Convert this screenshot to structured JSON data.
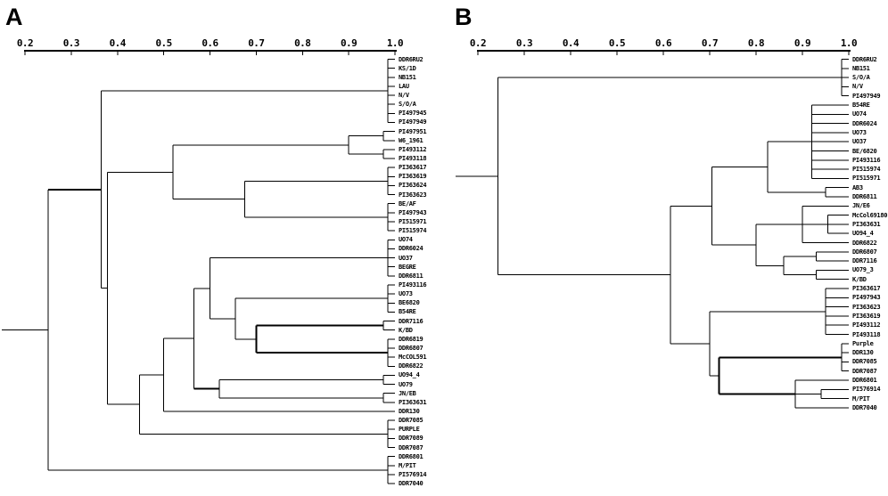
{
  "figure": {
    "background": "#ffffff",
    "line_color": "#000000"
  },
  "chart_data": [
    {
      "type": "dendrogram",
      "panel": "A",
      "axis": {
        "min": 0.2,
        "max": 1.0,
        "position": "top",
        "label_values": [
          "0.2",
          "0.3",
          "0.4",
          "0.5",
          "0.6",
          "0.7",
          "0.8",
          "0.9",
          "1.0"
        ]
      },
      "leaves": [
        "DDR6RU2",
        "KS/1D",
        "NB151",
        "LAU",
        "N/V",
        "S/O/A",
        "PI497945",
        "PI497949",
        "PI497951",
        "W6_1961",
        "PI493112",
        "PI493118",
        "PI363617",
        "PI363619",
        "PI363624",
        "PI363623",
        "BE/AF",
        "PI497943",
        "PI515971",
        "PI515974",
        "UO74",
        "DDR6024",
        "UO37",
        "BEGRE",
        "DDR6811",
        "PI493116",
        "UO73",
        "BE6820",
        "B54RE",
        "DDR7116",
        "K/BD",
        "DDR6819",
        "DDR6807",
        "McCOL591",
        "DDR6822",
        "UO94_4",
        "UO79",
        "JN/EB",
        "PI363631",
        "DDR130",
        "DDR7085",
        "PURPLE",
        "DDR7089",
        "DDR7087",
        "DDR6801",
        "M/PIT",
        "PI576914",
        "DDR7040"
      ],
      "tree": {
        "h": 0.25,
        "children": [
          {
            "h": 0.365,
            "stem_bold": true,
            "children": [
              {
                "h": 0.985,
                "children": [
                  0,
                  1,
                  2,
                  3,
                  4,
                  5,
                  6,
                  7
                ]
              },
              {
                "h": 0.378,
                "children": [
                  {
                    "h": 0.52,
                    "children": [
                      {
                        "h": 0.9,
                        "children": [
                          {
                            "h": 0.975,
                            "children": [
                              8,
                              9
                            ]
                          },
                          {
                            "h": 0.975,
                            "children": [
                              10,
                              11
                            ]
                          }
                        ]
                      },
                      {
                        "h": 0.675,
                        "children": [
                          {
                            "h": 0.985,
                            "children": [
                              12,
                              13,
                              14,
                              15
                            ]
                          },
                          {
                            "h": 0.985,
                            "children": [
                              16,
                              17,
                              18,
                              19
                            ]
                          }
                        ]
                      }
                    ]
                  },
                  {
                    "h": 0.448,
                    "children": [
                      {
                        "h": 0.5,
                        "children": [
                          {
                            "h": 0.565,
                            "children": [
                              {
                                "h": 0.6,
                                "children": [
                                  {
                                    "h": 0.985,
                                    "children": [
                                      20,
                                      21,
                                      22,
                                      23,
                                      24
                                    ]
                                  },
                                  {
                                    "h": 0.655,
                                    "children": [
                                      {
                                        "h": 0.985,
                                        "children": [
                                          25,
                                          26,
                                          27,
                                          28
                                        ]
                                      },
                                      {
                                        "h": 0.7,
                                        "bold": true,
                                        "children": [
                                          {
                                            "h": 0.975,
                                            "children": [
                                              29,
                                              30
                                            ]
                                          },
                                          {
                                            "h": 0.985,
                                            "children": [
                                              31,
                                              32,
                                              33,
                                              34
                                            ]
                                          }
                                        ]
                                      }
                                    ]
                                  }
                                ]
                              },
                              {
                                "h": 0.62,
                                "stem_bold": true,
                                "children": [
                                  {
                                    "h": 0.975,
                                    "children": [
                                      35,
                                      36
                                    ]
                                  },
                                  {
                                    "h": 0.975,
                                    "children": [
                                      37,
                                      38
                                    ]
                                  }
                                ]
                              }
                            ]
                          },
                          39
                        ]
                      },
                      {
                        "h": 0.985,
                        "children": [
                          40,
                          41,
                          42,
                          43
                        ]
                      }
                    ]
                  }
                ]
              }
            ]
          },
          {
            "h": 0.985,
            "children": [
              44,
              45,
              46,
              47
            ]
          }
        ]
      }
    },
    {
      "type": "dendrogram",
      "panel": "B",
      "axis": {
        "min": 0.2,
        "max": 1.0,
        "position": "top",
        "label_values": [
          "0.2",
          "0.3",
          "0.4",
          "0.5",
          "0.6",
          "0.7",
          "0.8",
          "0.9",
          "1.0"
        ]
      },
      "leaves": [
        "DDR6RU2",
        "NB151",
        "S/O/A",
        "N/V",
        "PI497949",
        "B54RE",
        "UO74",
        "DDR6024",
        "UO73",
        "UO37",
        "BE/6820",
        "PI493116",
        "PI515974",
        "PI515971",
        "AB3",
        "DDR6811",
        "JN/E6",
        "McCol69180",
        "PI363631",
        "UO94_4",
        "DDR6822",
        "DDR6807",
        "DDR7116",
        "UO79_3",
        "K/BD",
        "PI363617",
        "PI497943",
        "PI363623",
        "PI363619",
        "PI493112",
        "PI493118",
        "Purple",
        "DDR130",
        "DDR7085",
        "DDR7087",
        "DDR6801",
        "PI576914",
        "M/PIT",
        "DDR7040"
      ],
      "tree": {
        "h": 0.243,
        "children": [
          {
            "h": 0.985,
            "children": [
              0,
              1,
              2,
              3,
              4
            ]
          },
          {
            "h": 0.615,
            "children": [
              {
                "h": 0.705,
                "children": [
                  {
                    "h": 0.825,
                    "children": [
                      {
                        "h": 0.92,
                        "children": [
                          5,
                          6,
                          7,
                          8,
                          9,
                          10,
                          11,
                          12,
                          13
                        ]
                      },
                      {
                        "h": 0.95,
                        "children": [
                          14,
                          15
                        ]
                      }
                    ]
                  },
                  {
                    "h": 0.8,
                    "children": [
                      {
                        "h": 0.9,
                        "children": [
                          16,
                          {
                            "h": 0.955,
                            "children": [
                              17,
                              18,
                              19
                            ]
                          },
                          20
                        ]
                      },
                      {
                        "h": 0.86,
                        "children": [
                          {
                            "h": 0.93,
                            "children": [
                              21,
                              22
                            ]
                          },
                          {
                            "h": 0.93,
                            "children": [
                              23,
                              24
                            ]
                          }
                        ]
                      }
                    ]
                  }
                ]
              },
              {
                "h": 0.7,
                "children": [
                  {
                    "h": 0.95,
                    "children": [
                      25,
                      26,
                      27,
                      28,
                      29,
                      30
                    ]
                  },
                  {
                    "h": 0.72,
                    "bold": true,
                    "children": [
                      {
                        "h": 0.985,
                        "children": [
                          31,
                          32,
                          33,
                          34
                        ]
                      },
                      {
                        "h": 0.885,
                        "children": [
                          35,
                          {
                            "h": 0.94,
                            "children": [
                              36,
                              37
                            ]
                          },
                          38
                        ]
                      }
                    ]
                  }
                ]
              }
            ]
          }
        ]
      }
    }
  ]
}
